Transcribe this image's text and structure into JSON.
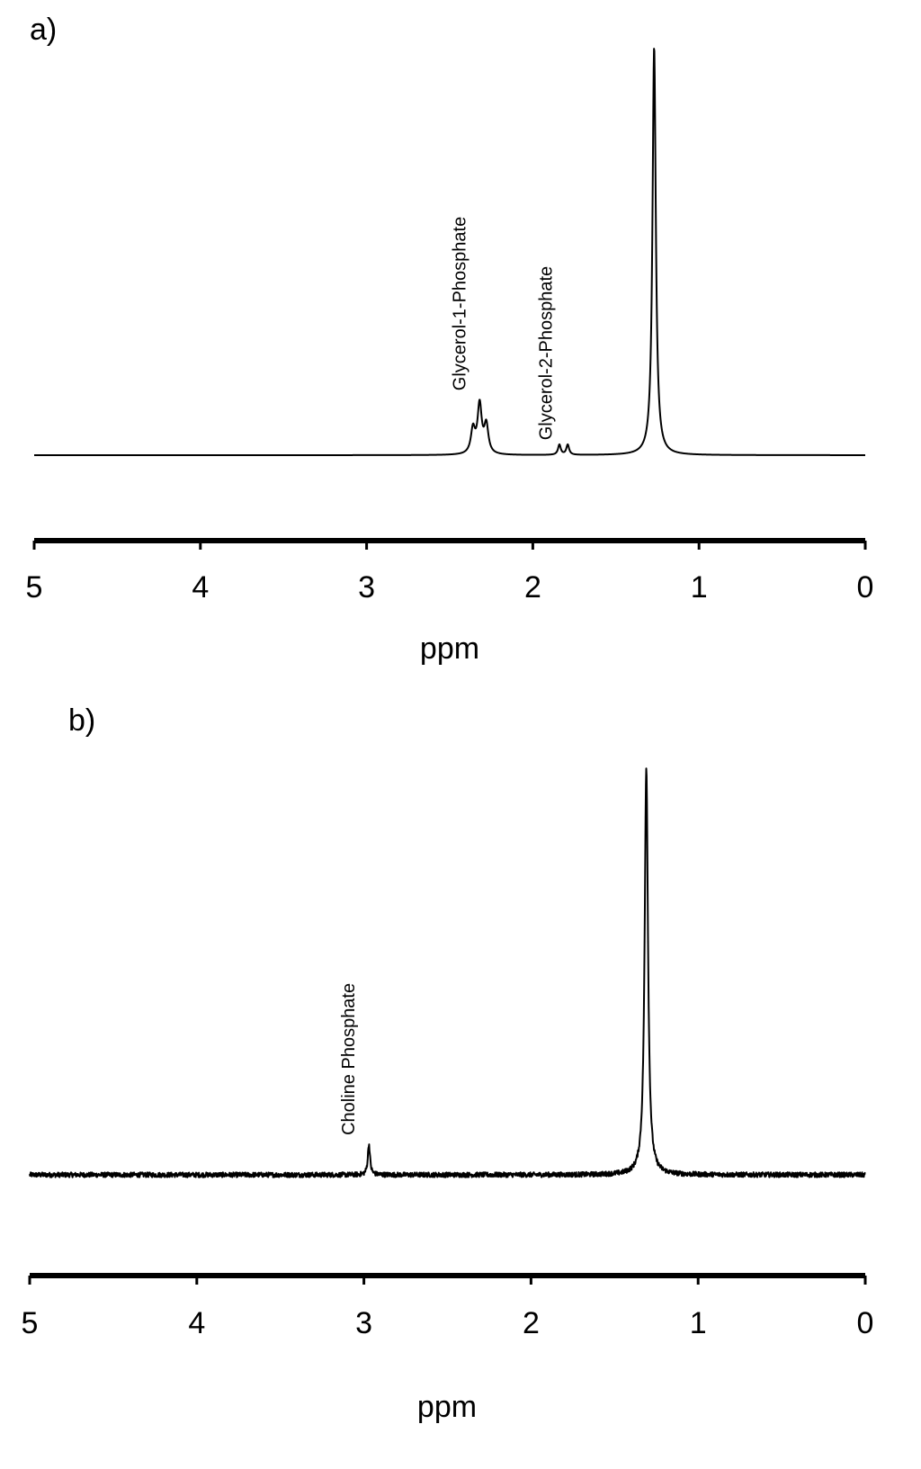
{
  "chart_data": [
    {
      "panel": "a)",
      "type": "line",
      "xlabel": "ppm",
      "ylabel": "",
      "xlim": [
        5,
        0
      ],
      "x_reversed": true,
      "grid": false,
      "xticks": [
        "5",
        "4",
        "3",
        "2",
        "1",
        "0"
      ],
      "peaks": [
        {
          "x": 2.36,
          "height": 0.06,
          "width": 0.015
        },
        {
          "x": 2.32,
          "height": 0.12,
          "width": 0.015
        },
        {
          "x": 2.28,
          "height": 0.07,
          "width": 0.015
        },
        {
          "x": 1.84,
          "height": 0.025,
          "width": 0.01
        },
        {
          "x": 1.79,
          "height": 0.025,
          "width": 0.01
        },
        {
          "x": 1.27,
          "height": 1.0,
          "width": 0.012
        }
      ],
      "noise": 0.0,
      "annotations": [
        {
          "text": "Glycerol-1-Phosphate",
          "x": 2.32
        },
        {
          "text": "Glycerol-2-Phosphate",
          "x": 1.8
        }
      ]
    },
    {
      "panel": "b)",
      "type": "line",
      "xlabel": "ppm",
      "ylabel": "",
      "xlim": [
        5,
        0
      ],
      "x_reversed": true,
      "grid": false,
      "xticks": [
        "5",
        "4",
        "3",
        "2",
        "1",
        "0"
      ],
      "peaks": [
        {
          "x": 2.97,
          "height": 0.075,
          "width": 0.008
        },
        {
          "x": 1.31,
          "height": 1.0,
          "width": 0.012
        }
      ],
      "noise": 0.006,
      "annotations": [
        {
          "text": "Choline Phosphate",
          "x": 2.97
        }
      ]
    }
  ]
}
